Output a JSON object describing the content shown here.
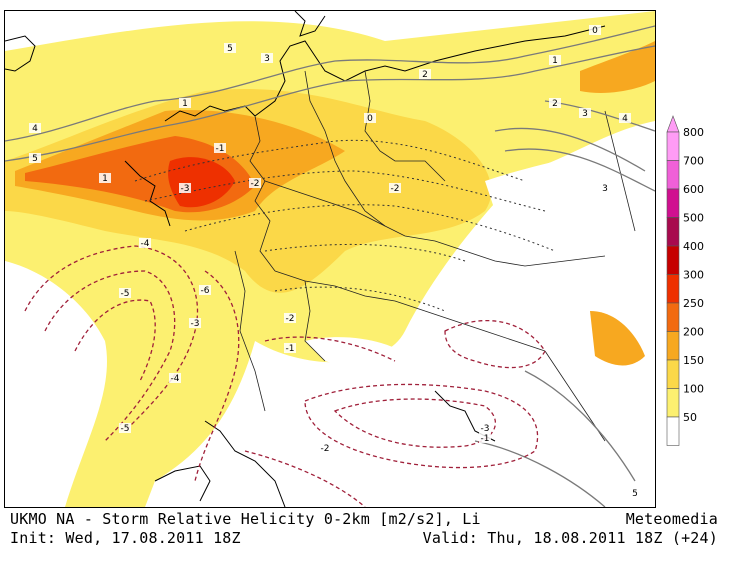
{
  "caption": {
    "title": "UKMO NA - Storm Relative Helicity 0-2km [m2/s2], Li",
    "brand": "Meteomedia",
    "init": "Init: Wed, 17.08.2011 18Z",
    "valid": "Valid: Thu, 18.08.2011 18Z (+24)"
  },
  "legend": {
    "levels": [
      "800",
      "700",
      "600",
      "500",
      "400",
      "300",
      "250",
      "200",
      "150",
      "100",
      "50"
    ],
    "colors": [
      "#ff9cf5",
      "#f060d8",
      "#d01090",
      "#a80a4e",
      "#c60000",
      "#ee3000",
      "#f26a10",
      "#f7a820",
      "#fbd848",
      "#fcf070",
      "#ffffff"
    ]
  },
  "map": {
    "contour_labels": [
      "5",
      "3",
      "2",
      "1",
      "0",
      "-1",
      "-2",
      "-3",
      "-4",
      "-5",
      "-6",
      "-2",
      "-1",
      "0",
      "1",
      "2",
      "3",
      "4",
      "5",
      "-3",
      "-4",
      "-5",
      "-2",
      "-1",
      "3",
      "4",
      "5",
      "-2",
      "-3",
      "1"
    ],
    "colors": {
      "coast": "#000000",
      "border": "#222222",
      "li_positive": "#7a7a7a",
      "li_negative_weak": "#333333",
      "li_negative_strong": "#a0203a"
    }
  }
}
